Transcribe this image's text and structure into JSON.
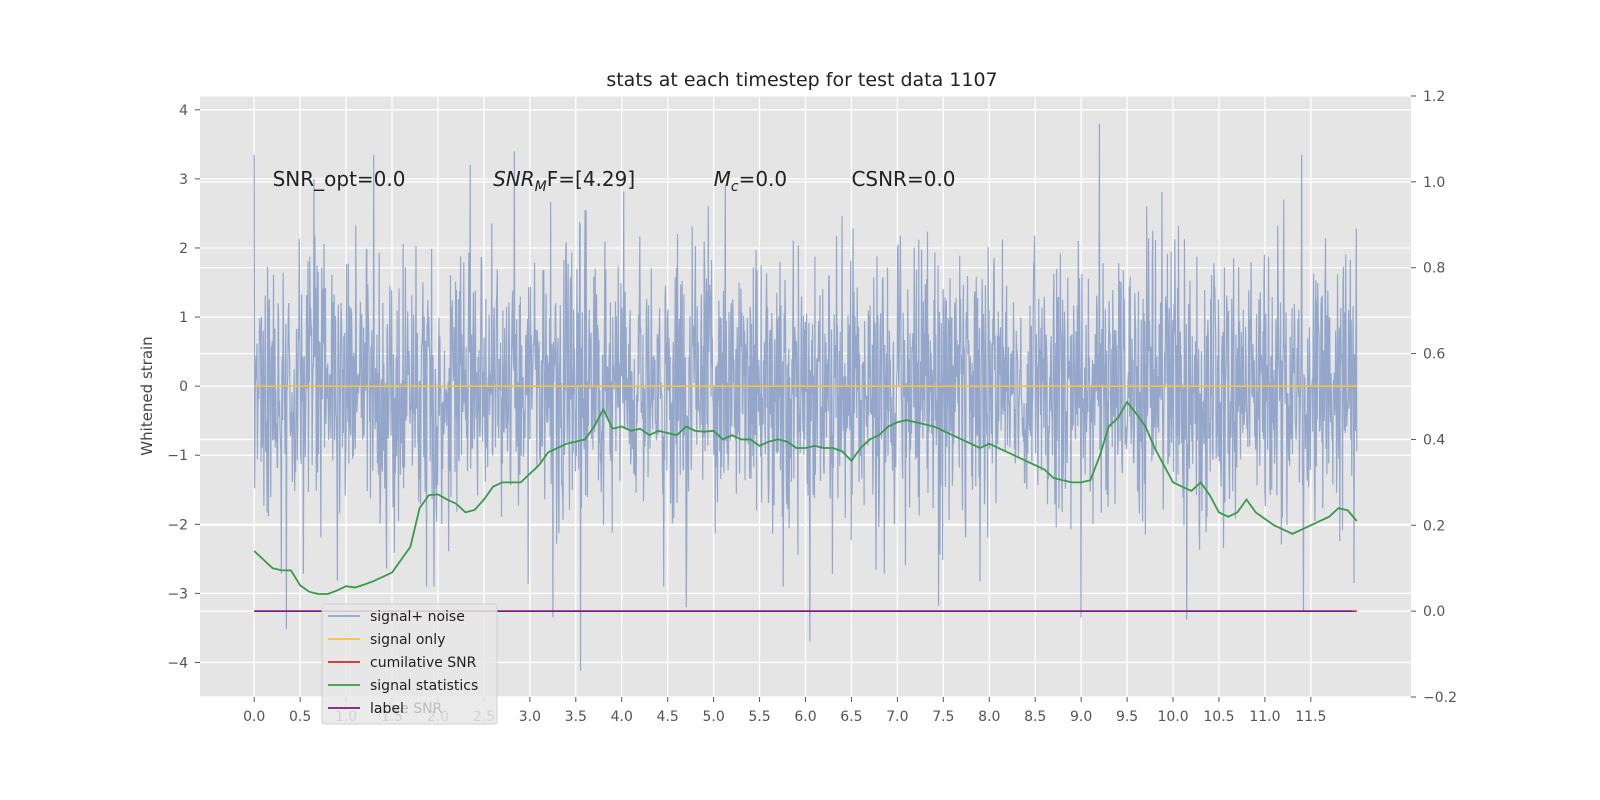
{
  "chart_data": {
    "type": "line",
    "title": "stats at each timestep for test data 1107",
    "ylabel": "Whitened strain",
    "xlabel": "",
    "x_range": [
      -0.59,
      12.59
    ],
    "x_ticks": [
      0.0,
      0.5,
      1.0,
      1.5,
      2.0,
      2.5,
      3.0,
      3.5,
      4.0,
      4.5,
      5.0,
      5.5,
      6.0,
      6.5,
      7.0,
      7.5,
      8.0,
      8.5,
      9.0,
      9.5,
      10.0,
      10.5,
      11.0,
      11.5
    ],
    "x_tick_labels": [
      "0.0",
      "0.5",
      "1.0",
      "1.5",
      "2.0",
      "2.5",
      "3.0",
      "3.5",
      "4.0",
      "4.5",
      "5.0",
      "5.5",
      "6.0",
      "6.5",
      "7.0",
      "7.5",
      "8.0",
      "8.5",
      "9.0",
      "9.5",
      "10.0",
      "10.5",
      "11.0",
      "11.5"
    ],
    "y_left_range": [
      -4.5,
      4.2
    ],
    "y_left_ticks": [
      -4,
      -3,
      -2,
      -1,
      0,
      1,
      2,
      3,
      4
    ],
    "y_left_tick_labels": [
      "−4",
      "−3",
      "−2",
      "−1",
      "0",
      "1",
      "2",
      "3",
      "4"
    ],
    "y_right_range": [
      -0.2,
      1.2
    ],
    "y_right_ticks": [
      -0.2,
      0.0,
      0.2,
      0.4,
      0.6,
      0.8,
      1.0,
      1.2
    ],
    "y_right_tick_labels": [
      "−0.2",
      "0.0",
      "0.2",
      "0.4",
      "0.6",
      "0.8",
      "1.0",
      "1.2"
    ],
    "grid": true,
    "legend_position": "lower-left",
    "annotations": [
      {
        "id": "snr-opt",
        "text": "SNR_opt=0.0",
        "x": 0.2,
        "y": 3.0
      },
      {
        "id": "snr-mf",
        "main": "SNR",
        "sub": "M",
        "rest": "F=[4.29]",
        "x": 2.6,
        "y": 3.0
      },
      {
        "id": "mc",
        "main": "M",
        "sub": "c",
        "rest": "=0.0",
        "x": 5.0,
        "y": 3.0
      },
      {
        "id": "csnr",
        "text": "CSNR=0.0",
        "x": 6.5,
        "y": 3.0
      }
    ],
    "series": [
      {
        "name": "signal+ noise",
        "color": "#8fa3c9",
        "axis": "left",
        "kind": "noise",
        "x_range": [
          0.0,
          12.0
        ],
        "sample_count": 2400,
        "sigma": 1.0,
        "notable_points": [
          [
            0.0,
            3.35
          ],
          [
            0.35,
            -3.52
          ],
          [
            0.65,
            3.0
          ],
          [
            1.3,
            3.35
          ],
          [
            2.35,
            3.2
          ],
          [
            2.83,
            3.4
          ],
          [
            3.25,
            -3.35
          ],
          [
            3.55,
            -4.12
          ],
          [
            4.7,
            -3.2
          ],
          [
            6.05,
            -3.7
          ],
          [
            7.45,
            -3.18
          ],
          [
            9.0,
            -3.35
          ],
          [
            9.2,
            3.8
          ],
          [
            10.15,
            -3.38
          ],
          [
            11.4,
            3.35
          ],
          [
            11.42,
            -3.25
          ],
          [
            11.97,
            -2.85
          ]
        ]
      },
      {
        "name": "signal only",
        "color": "#f5c242",
        "axis": "left",
        "x": [
          0.0,
          12.0
        ],
        "values": [
          0.0,
          0.0
        ]
      },
      {
        "name": "cumilative SNR",
        "color": "#d62728",
        "axis": "right",
        "x": [
          0.0,
          12.0
        ],
        "values": [
          0.0,
          0.0
        ]
      },
      {
        "name": "signal statistics",
        "color": "#3a9a4a",
        "axis": "right",
        "x": [
          0.0,
          0.1,
          0.2,
          0.3,
          0.4,
          0.5,
          0.6,
          0.7,
          0.8,
          0.9,
          1.0,
          1.1,
          1.2,
          1.3,
          1.4,
          1.5,
          1.6,
          1.7,
          1.8,
          1.9,
          2.0,
          2.1,
          2.2,
          2.3,
          2.4,
          2.5,
          2.6,
          2.7,
          2.8,
          2.9,
          3.0,
          3.1,
          3.2,
          3.3,
          3.4,
          3.5,
          3.6,
          3.7,
          3.8,
          3.9,
          4.0,
          4.1,
          4.2,
          4.3,
          4.4,
          4.5,
          4.6,
          4.7,
          4.8,
          4.9,
          5.0,
          5.1,
          5.2,
          5.3,
          5.4,
          5.5,
          5.6,
          5.7,
          5.8,
          5.9,
          6.0,
          6.1,
          6.2,
          6.3,
          6.4,
          6.5,
          6.6,
          6.7,
          6.8,
          6.9,
          7.0,
          7.1,
          7.2,
          7.3,
          7.4,
          7.5,
          7.6,
          7.7,
          7.8,
          7.9,
          8.0,
          8.1,
          8.2,
          8.3,
          8.4,
          8.5,
          8.6,
          8.7,
          8.8,
          8.9,
          9.0,
          9.1,
          9.2,
          9.3,
          9.4,
          9.5,
          9.6,
          9.7,
          9.8,
          9.9,
          10.0,
          10.1,
          10.2,
          10.3,
          10.4,
          10.5,
          10.6,
          10.7,
          10.8,
          10.9,
          11.0,
          11.1,
          11.2,
          11.3,
          11.4,
          11.5,
          11.6,
          11.7,
          11.8,
          11.9,
          12.0
        ],
        "values": [
          0.14,
          0.12,
          0.1,
          0.095,
          0.095,
          0.06,
          0.045,
          0.04,
          0.04,
          0.048,
          0.058,
          0.055,
          0.062,
          0.07,
          0.08,
          0.09,
          0.12,
          0.15,
          0.24,
          0.27,
          0.272,
          0.26,
          0.25,
          0.23,
          0.236,
          0.26,
          0.29,
          0.3,
          0.3,
          0.3,
          0.32,
          0.34,
          0.37,
          0.38,
          0.39,
          0.395,
          0.4,
          0.43,
          0.47,
          0.425,
          0.43,
          0.42,
          0.425,
          0.41,
          0.42,
          0.415,
          0.41,
          0.43,
          0.42,
          0.418,
          0.42,
          0.4,
          0.41,
          0.4,
          0.4,
          0.385,
          0.395,
          0.4,
          0.395,
          0.38,
          0.38,
          0.385,
          0.38,
          0.38,
          0.372,
          0.35,
          0.38,
          0.4,
          0.41,
          0.43,
          0.44,
          0.445,
          0.44,
          0.435,
          0.43,
          0.42,
          0.41,
          0.4,
          0.39,
          0.38,
          0.39,
          0.38,
          0.37,
          0.36,
          0.35,
          0.34,
          0.33,
          0.31,
          0.305,
          0.3,
          0.3,
          0.305,
          0.36,
          0.43,
          0.45,
          0.487,
          0.46,
          0.43,
          0.38,
          0.34,
          0.3,
          0.29,
          0.28,
          0.3,
          0.27,
          0.23,
          0.22,
          0.23,
          0.26,
          0.23,
          0.215,
          0.2,
          0.19,
          0.18,
          0.19,
          0.2,
          0.21,
          0.22,
          0.24,
          0.235,
          0.21
        ]
      },
      {
        "name": "label",
        "color": "#7a1a7a",
        "axis": "right",
        "x": [
          0.0,
          11.95
        ],
        "values": [
          0.0,
          0.0
        ]
      }
    ],
    "legend_overlap_text": "lative SNR"
  }
}
